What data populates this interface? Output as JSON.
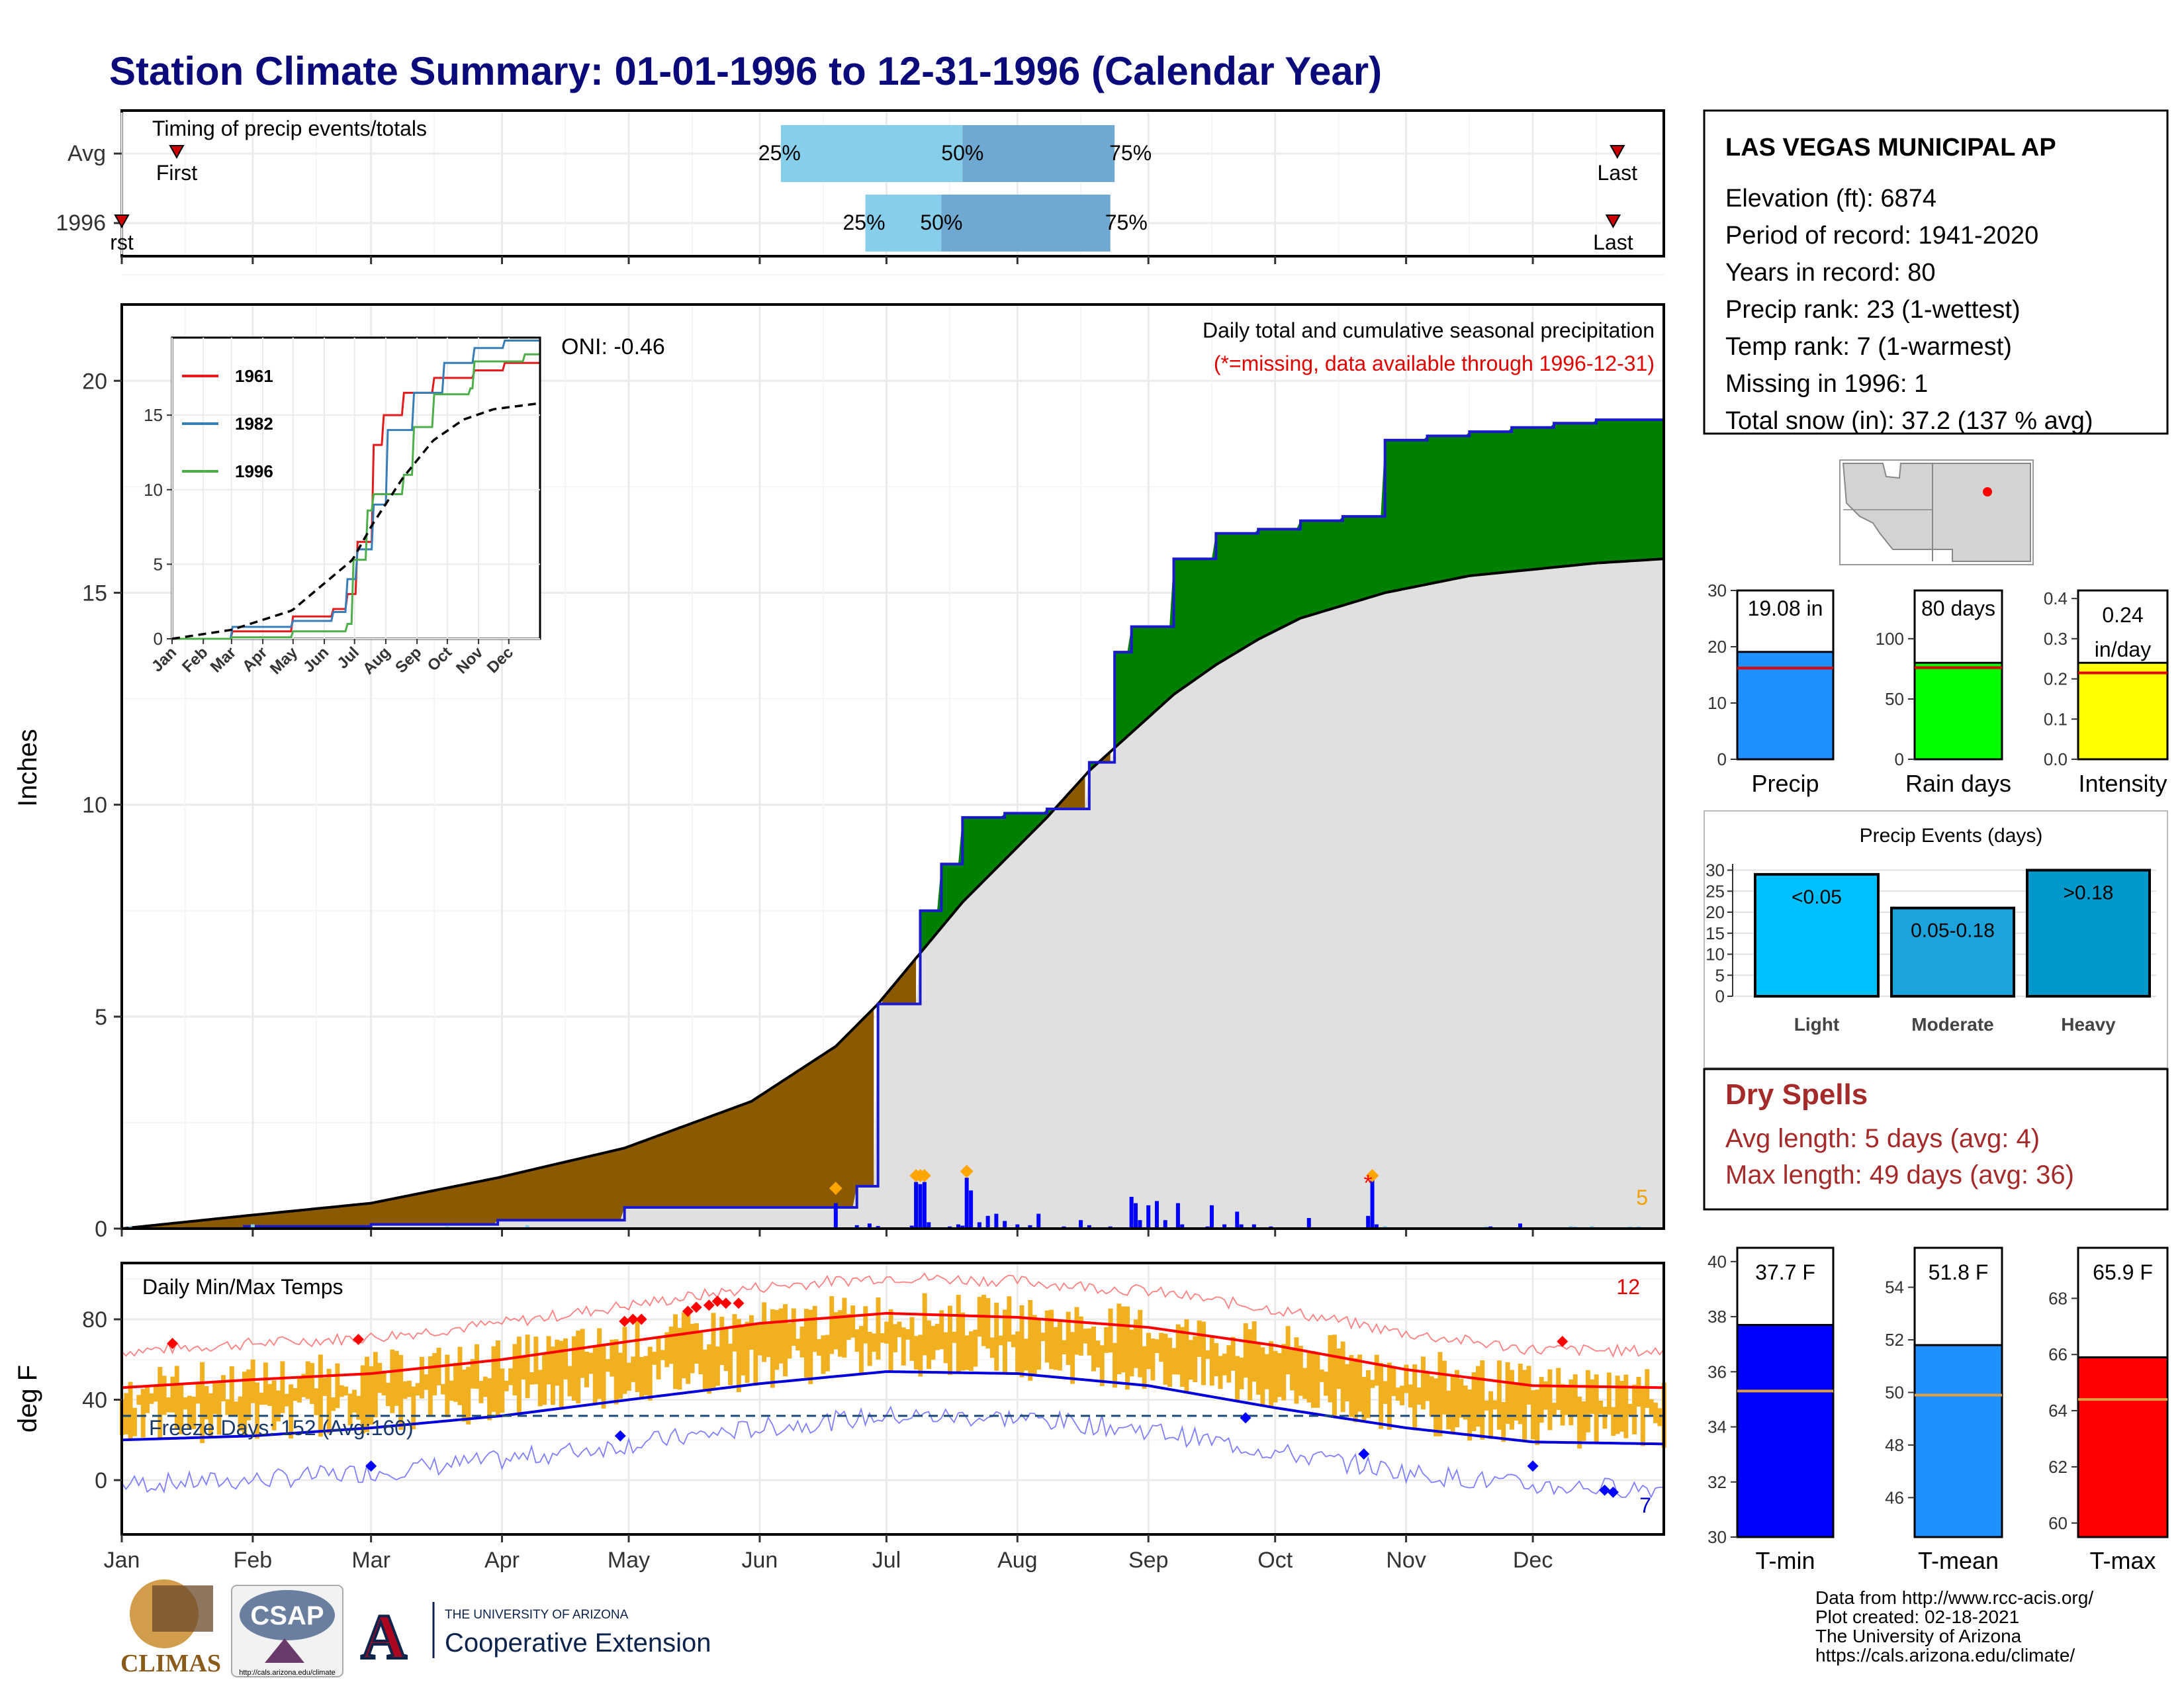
{
  "title": "Station Climate Summary: 01-01-1996 to 12-31-1996 (Calendar Year)",
  "timing_panel": {
    "label": "Timing of precip events/totals",
    "rows": [
      {
        "name": "Avg",
        "first_label": "First",
        "last_label": "Last",
        "p25_label": "25%",
        "p50_label": "50%",
        "p75_label": "75%",
        "first_day": 14,
        "last_day": 355,
        "p25_day": 157,
        "p50_day": 200,
        "p75_day": 236
      },
      {
        "name": "1996",
        "first_label": "rst",
        "last_label": "Last",
        "p25_label": "25%",
        "p50_label": "50%",
        "p75_label": "75%",
        "first_day": 1,
        "last_day": 354,
        "p25_day": 177,
        "p50_day": 195,
        "p75_day": 235
      }
    ]
  },
  "precip_panel": {
    "ylabel": "Inches",
    "annotation_title": "Daily total and cumulative seasonal precipitation",
    "annotation_missing": "(*=missing, data available through 1996-12-31)",
    "oni": "ONI: -0.46",
    "count_label": "5",
    "yticks": [
      "0",
      "5",
      "10",
      "15",
      "20"
    ]
  },
  "inset": {
    "legend": [
      {
        "name": "1961",
        "color": "#e41a1c"
      },
      {
        "name": "1982",
        "color": "#377eb8"
      },
      {
        "name": "1996",
        "color": "#4daf4a"
      }
    ],
    "yticks": [
      "0",
      "5",
      "10",
      "15"
    ],
    "xticks": [
      "Jan",
      "Feb",
      "Mar",
      "Apr",
      "May",
      "Jun",
      "Jul",
      "Aug",
      "Sep",
      "Oct",
      "Nov",
      "Dec"
    ]
  },
  "temp_panel": {
    "label": "Daily Min/Max Temps",
    "ylabel": "deg F",
    "freeze_label": "Freeze Days: 152 (Avg:160)",
    "hot_count": "12",
    "cold_count": "7",
    "yticks": [
      "0",
      "40",
      "80"
    ]
  },
  "months": [
    "Jan",
    "Feb",
    "Mar",
    "Apr",
    "May",
    "Jun",
    "Jul",
    "Aug",
    "Sep",
    "Oct",
    "Nov",
    "Dec"
  ],
  "station": {
    "name": "LAS VEGAS MUNICIPAL AP",
    "lines": [
      "Elevation (ft): 6874",
      "Period of record: 1941-2020",
      "Years in record: 80",
      "Precip rank: 23 (1-wettest)",
      "Temp rank: 7 (1-warmest)",
      "Missing in 1996: 1",
      "Total snow (in): 37.2 (137 % avg)"
    ]
  },
  "summary_bars": [
    {
      "name": "Precip",
      "value_label": "19.08 in",
      "value": 19.08,
      "avg": 16.2,
      "max": 30,
      "ticks": [
        "0",
        "10",
        "20",
        "30"
      ],
      "color": "#1e90ff"
    },
    {
      "name": "Rain days",
      "value_label": "80 days",
      "value": 80,
      "avg": 76,
      "max": 140,
      "ticks": [
        "0",
        "50",
        "100"
      ],
      "color": "#00ff00"
    },
    {
      "name": "Intensity",
      "value_label_1": "0.24",
      "value_label_2": "in/day",
      "value": 0.24,
      "avg": 0.215,
      "max": 0.42,
      "ticks": [
        "0.0",
        "0.1",
        "0.2",
        "0.3",
        "0.4"
      ],
      "color": "#ffff00"
    }
  ],
  "precip_events": {
    "title": "Precip Events (days)",
    "ticks": [
      "0",
      "5",
      "10",
      "15",
      "20",
      "25",
      "30"
    ],
    "bars": [
      {
        "name": "Light",
        "label": "<0.05",
        "value": 29,
        "color": "#00bfff"
      },
      {
        "name": "Moderate",
        "label": "0.05-0.18",
        "value": 21,
        "color": "#1ca3dc"
      },
      {
        "name": "Heavy",
        "label": ">0.18",
        "value": 30,
        "color": "#0099cc"
      }
    ]
  },
  "dry_spells": {
    "title": "Dry Spells",
    "avg_line": "Avg length: 5 days (avg: 4)",
    "max_line": "Max length: 49 days (avg: 36)"
  },
  "temp_bars": [
    {
      "name": "T-min",
      "label": "37.7 F",
      "value": 37.7,
      "avg": 35.3,
      "min": 30,
      "max": 40.5,
      "ticks": [
        "30",
        "32",
        "34",
        "36",
        "38",
        "40"
      ],
      "color": "#0000ff"
    },
    {
      "name": "T-mean",
      "label": "51.8 F",
      "value": 51.8,
      "avg": 49.9,
      "min": 44.5,
      "max": 55.5,
      "ticks": [
        "46",
        "48",
        "50",
        "52",
        "54"
      ],
      "color": "#1e90ff"
    },
    {
      "name": "T-max",
      "label": "65.9 F",
      "value": 65.9,
      "avg": 64.4,
      "min": 59.5,
      "max": 69.8,
      "ticks": [
        "60",
        "62",
        "64",
        "66",
        "68"
      ],
      "color": "#ff0000"
    }
  ],
  "footer": {
    "lines": [
      "Data from http://www.rcc-acis.org/",
      "Plot created: 02-18-2021",
      "The University of Arizona",
      "https://cals.arizona.edu/climate/"
    ],
    "logo_climas": "CLIMAS",
    "logo_csap": "CSAP",
    "logo_csap_url": "http://cals.arizona.edu/climate",
    "logo_ua_line1": "THE UNIVERSITY OF ARIZONA",
    "logo_ua_line2": "Cooperative Extension"
  },
  "chart_data": [
    {
      "type": "area",
      "title": "Daily total and cumulative seasonal precipitation",
      "ylabel": "Inches",
      "x_unit": "day of year",
      "ylim": [
        0,
        21
      ],
      "series": [
        {
          "name": "1996",
          "x": [
            1,
            30,
            60,
            90,
            120,
            150,
            163,
            175,
            180,
            181,
            190,
            195,
            200,
            210,
            220,
            230,
            236,
            240,
            250,
            260,
            270,
            280,
            290,
            296,
            300,
            310,
            320,
            330,
            340,
            350,
            366
          ],
          "y": [
            0,
            0.05,
            0.1,
            0.2,
            0.5,
            0.5,
            0.5,
            1.0,
            5.3,
            5.3,
            7.5,
            8.6,
            9.7,
            9.8,
            9.9,
            11.0,
            13.6,
            14.2,
            15.8,
            16.4,
            16.5,
            16.7,
            16.8,
            16.8,
            18.6,
            18.7,
            18.8,
            18.9,
            19.0,
            19.08,
            19.08
          ]
        },
        {
          "name": "Avg",
          "x": [
            1,
            30,
            60,
            90,
            120,
            150,
            170,
            180,
            190,
            200,
            210,
            220,
            230,
            240,
            250,
            260,
            270,
            280,
            290,
            300,
            310,
            320,
            330,
            340,
            350,
            366
          ],
          "y": [
            0,
            0.3,
            0.6,
            1.2,
            1.9,
            3.0,
            4.3,
            5.3,
            6.5,
            7.7,
            8.7,
            9.7,
            10.8,
            11.7,
            12.6,
            13.3,
            13.9,
            14.4,
            14.7,
            15.0,
            15.2,
            15.4,
            15.5,
            15.6,
            15.7,
            15.8
          ]
        }
      ]
    },
    {
      "type": "line",
      "title": "Daily Min/Max Temps",
      "ylabel": "deg F",
      "ylim": [
        -20,
        110
      ],
      "x": [
        1,
        32,
        60,
        91,
        121,
        152,
        182,
        213,
        244,
        274,
        305,
        335,
        366
      ],
      "series": [
        {
          "name": "Avg max",
          "values": [
            46,
            50,
            53,
            60,
            69,
            78,
            83,
            81,
            76,
            67,
            55,
            47,
            46
          ]
        },
        {
          "name": "Avg min",
          "values": [
            20,
            22,
            26,
            32,
            40,
            48,
            54,
            53,
            47,
            36,
            26,
            19,
            18
          ]
        },
        {
          "name": "Freeze line",
          "values": [
            32,
            32,
            32,
            32,
            32,
            32,
            32,
            32,
            32,
            32,
            32,
            32,
            32
          ]
        }
      ]
    },
    {
      "type": "line",
      "title": "",
      "ylim": [
        0,
        20
      ],
      "x_unit": "day of year",
      "series": [
        {
          "name": "1961",
          "x": [
            1,
            60,
            120,
            160,
            175,
            185,
            200,
            210,
            230,
            260,
            300,
            330,
            366
          ],
          "y": [
            0,
            0.5,
            1.5,
            2.0,
            3.0,
            6.5,
            13.0,
            15.0,
            16.5,
            17.5,
            18.0,
            18.5,
            18.8
          ]
        },
        {
          "name": "1982",
          "x": [
            1,
            60,
            120,
            160,
            175,
            185,
            200,
            215,
            240,
            270,
            300,
            330,
            366
          ],
          "y": [
            0,
            0.8,
            1.2,
            1.8,
            4.0,
            6.0,
            9.0,
            14.0,
            16.5,
            18.5,
            19.5,
            20.0,
            20.3
          ]
        },
        {
          "name": "1996",
          "x": [
            1,
            60,
            120,
            150,
            163,
            175,
            180,
            195,
            200,
            230,
            240,
            260,
            296,
            300,
            350,
            366
          ],
          "y": [
            0,
            0.1,
            0.5,
            0.5,
            0.5,
            1.0,
            5.3,
            8.6,
            9.7,
            11.0,
            14.2,
            16.4,
            16.8,
            18.6,
            19.08,
            19.08
          ]
        },
        {
          "name": "Avg",
          "x": [
            1,
            60,
            120,
            180,
            200,
            230,
            260,
            290,
            320,
            366
          ],
          "y": [
            0,
            0.6,
            1.9,
            5.3,
            7.7,
            10.8,
            13.3,
            14.7,
            15.4,
            15.8
          ]
        }
      ]
    }
  ]
}
